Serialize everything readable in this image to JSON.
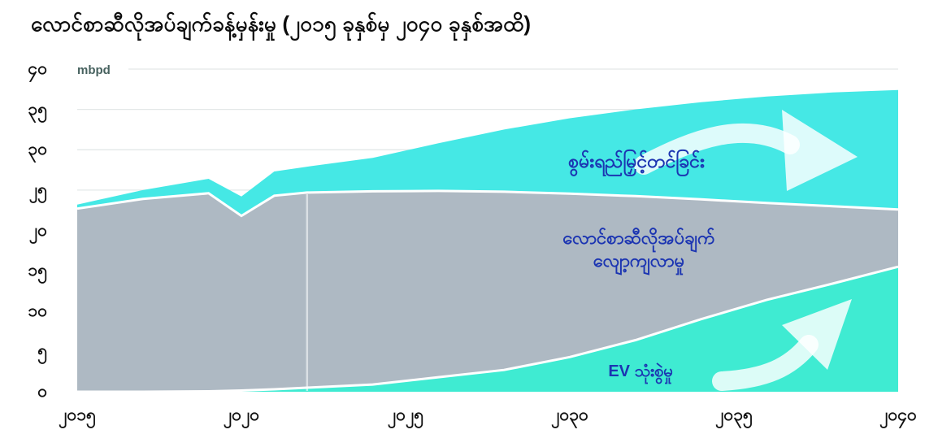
{
  "title": "လောင်စာဆီလိုအပ်ချက်ခန့်မှန်းမှု (၂၀၁၅ ခုနှစ်မှ ၂၀၄၀ ခုနှစ်အထိ)",
  "unit_label": "mbpd",
  "colors": {
    "efficiency_area": "#45E8E5",
    "demand_area": "#AEB9C3",
    "ev_area": "#3FEBD2",
    "label_text": "#1C35B2",
    "title_text": "#0D0D0D",
    "unit_text": "#47625F",
    "tick_text": "#111111",
    "boundary_stroke": "#FFFFFF",
    "gridline": "#E3E8E8",
    "divider": "rgba(255,255,255,0.55)"
  },
  "area_labels": {
    "efficiency": "စွမ်းရည်မြှင့်တင်ခြင်း",
    "demand_line1": "လောင်စာဆီလိုအပ်ချက်",
    "demand_line2": "လျော့ကျလာမှု",
    "ev": "EV သုံးစွဲမှု"
  },
  "icons": {
    "top_arrow": "curved-right-trend-arrow-icon",
    "bottom_arrow": "curved-up-right-trend-arrow-icon"
  },
  "chart_data": {
    "type": "area",
    "title": "လောင်စာဆီလိုအပ်ချက်ခန့်မှန်းမှု (၂၀၁၅ ခုနှစ်မှ ၂၀၄၀ ခုနှစ်အထိ)",
    "ylabel": "mbpd",
    "xlabel": "",
    "xlim": [
      2015,
      2040
    ],
    "ylim": [
      0,
      40
    ],
    "grid": "horizontal-faint",
    "legend_position": "labels-inside-areas",
    "history_forecast_divider_x": 2022,
    "y_ticks": [
      {
        "value": 0,
        "label": "၀"
      },
      {
        "value": 5,
        "label": "၅"
      },
      {
        "value": 10,
        "label": "၁၀"
      },
      {
        "value": 15,
        "label": "၁၅"
      },
      {
        "value": 20,
        "label": "၂၀"
      },
      {
        "value": 25,
        "label": "၂၅"
      },
      {
        "value": 30,
        "label": "၃၀"
      },
      {
        "value": 35,
        "label": "၃၅"
      },
      {
        "value": 40,
        "label": "၄၀"
      }
    ],
    "x_ticks": [
      {
        "value": 2015,
        "label": "၂၀၁၅"
      },
      {
        "value": 2020,
        "label": "၂၀၂၀"
      },
      {
        "value": 2025,
        "label": "၂၀၂၅"
      },
      {
        "value": 2030,
        "label": "၂၀၃၀"
      },
      {
        "value": 2035,
        "label": "၂၀၃၅"
      },
      {
        "value": 2040,
        "label": "၂၀၄၀"
      }
    ],
    "x": [
      2015,
      2017,
      2019,
      2020,
      2021,
      2022,
      2024,
      2026,
      2028,
      2030,
      2032,
      2034,
      2036,
      2038,
      2040
    ],
    "series": [
      {
        "name": "demand_before_efficiency_gains",
        "area_label": "စွမ်းရည်မြှင့်တင်ခြင်း",
        "values": [
          23.2,
          25.0,
          26.4,
          24.2,
          27.3,
          27.9,
          29.0,
          30.8,
          32.5,
          33.9,
          35.0,
          35.9,
          36.6,
          37.1,
          37.4
        ]
      },
      {
        "name": "fuel_demand_declining",
        "area_label": "လောင်စာဆီလိုအပ်ချက် လျော့ကျလာမှု",
        "values": [
          22.7,
          23.9,
          24.6,
          21.8,
          24.3,
          24.7,
          24.85,
          24.9,
          24.8,
          24.55,
          24.25,
          23.85,
          23.4,
          23.0,
          22.6
        ]
      },
      {
        "name": "ev_usage_displacement",
        "area_label": "EV သုံးစွဲမှု",
        "values": [
          0,
          0,
          0.05,
          0.15,
          0.3,
          0.5,
          0.9,
          1.8,
          2.7,
          4.3,
          6.4,
          9.0,
          11.4,
          13.4,
          15.5
        ]
      }
    ]
  }
}
